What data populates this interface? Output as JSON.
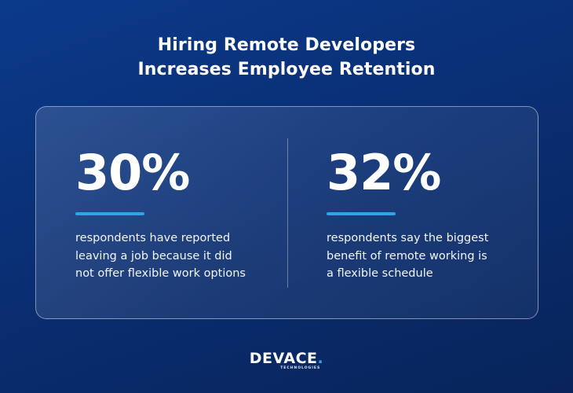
{
  "title": {
    "line1": "Hiring Remote Developers",
    "line2": "Increases Employee Retention"
  },
  "stats": [
    {
      "value": "30%",
      "lines": [
        "respondents have reported",
        "leaving a job because it did",
        "not offer flexible work options"
      ]
    },
    {
      "value": "32%",
      "lines": [
        "respondents say the biggest",
        "benefit of remote working is",
        "a flexible schedule"
      ]
    }
  ],
  "logo": {
    "word": "DEVACE",
    "dot": ".",
    "subtitle": "TECHNOLOGIES"
  },
  "colors": {
    "accent": "#2ea6e6",
    "background_top": "#0b3a8a",
    "background_bottom": "#08245a"
  }
}
